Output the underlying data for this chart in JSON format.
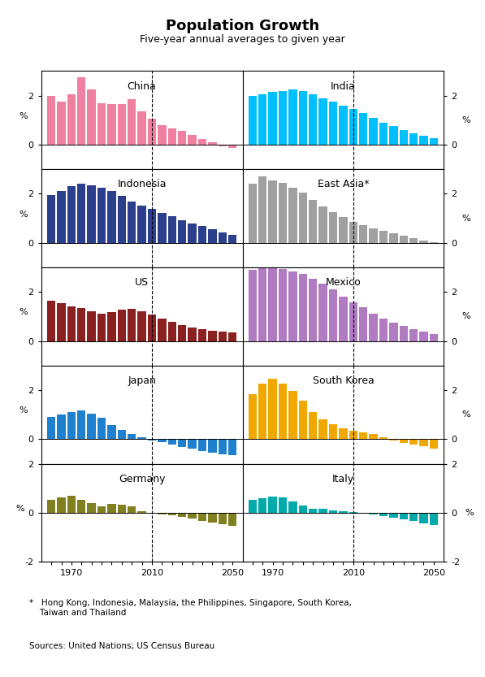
{
  "title": "Population Growth",
  "subtitle": "Five-year annual averages to given year",
  "footnote": "*   Hong Kong, Indonesia, Malaysia, the Philippines, Singapore, South Korea,\n    Taiwan and Thailand",
  "source": "Sources: United Nations; US Census Bureau",
  "colors": {
    "China": "#F080A0",
    "India": "#00BFFF",
    "Indonesia": "#2B3F8C",
    "East Asia*": "#A0A0A0",
    "US": "#8B2020",
    "Mexico": "#B07BC0",
    "Japan": "#2080D0",
    "South Korea": "#F0A800",
    "Germany": "#808020",
    "Italy": "#00AAAA"
  },
  "layout": [
    [
      "China",
      "India"
    ],
    [
      "Indonesia",
      "East Asia*"
    ],
    [
      "US",
      "Mexico"
    ],
    [
      "Japan",
      "South Korea"
    ],
    [
      "Germany",
      "Italy"
    ]
  ],
  "ylims": {
    "China": [
      -1,
      3
    ],
    "India": [
      -1,
      3
    ],
    "Indonesia": [
      -1,
      3
    ],
    "East Asia*": [
      -1,
      3
    ],
    "US": [
      -1,
      3
    ],
    "Mexico": [
      -1,
      3
    ],
    "Japan": [
      -1,
      3
    ],
    "South Korea": [
      -1,
      3
    ],
    "Germany": [
      -2,
      2
    ],
    "Italy": [
      -2,
      2
    ]
  },
  "yticks": {
    "China": [
      0,
      2
    ],
    "India": [
      0,
      2
    ],
    "Indonesia": [
      0,
      2
    ],
    "East Asia*": [
      0,
      2
    ],
    "US": [
      0,
      2
    ],
    "Mexico": [
      0,
      2
    ],
    "Japan": [
      0,
      2
    ],
    "South Korea": [
      0,
      2
    ],
    "Germany": [
      -2,
      0,
      2
    ],
    "Italy": [
      -2,
      0,
      2
    ]
  },
  "panels": {
    "China": {
      "years": [
        1960,
        1965,
        1970,
        1975,
        1980,
        1985,
        1990,
        1995,
        2000,
        2005,
        2010,
        2015,
        2020,
        2025,
        2030,
        2035,
        2040,
        2045,
        2050
      ],
      "values": [
        2.0,
        1.75,
        2.05,
        2.75,
        2.25,
        1.7,
        1.65,
        1.65,
        1.85,
        1.35,
        1.05,
        0.8,
        0.65,
        0.55,
        0.4,
        0.25,
        0.1,
        -0.08,
        -0.12
      ]
    },
    "India": {
      "years": [
        1960,
        1965,
        1970,
        1975,
        1980,
        1985,
        1990,
        1995,
        2000,
        2005,
        2010,
        2015,
        2020,
        2025,
        2030,
        2035,
        2040,
        2045,
        2050
      ],
      "values": [
        2.0,
        2.05,
        2.15,
        2.2,
        2.25,
        2.2,
        2.05,
        1.9,
        1.75,
        1.6,
        1.45,
        1.3,
        1.1,
        0.9,
        0.75,
        0.6,
        0.48,
        0.38,
        0.28
      ]
    },
    "Indonesia": {
      "years": [
        1960,
        1965,
        1970,
        1975,
        1980,
        1985,
        1990,
        1995,
        2000,
        2005,
        2010,
        2015,
        2020,
        2025,
        2030,
        2035,
        2040,
        2045,
        2050
      ],
      "values": [
        1.95,
        2.1,
        2.3,
        2.4,
        2.35,
        2.25,
        2.1,
        1.9,
        1.68,
        1.52,
        1.38,
        1.22,
        1.08,
        0.92,
        0.8,
        0.68,
        0.56,
        0.44,
        0.34
      ]
    },
    "East Asia*": {
      "years": [
        1960,
        1965,
        1970,
        1975,
        1980,
        1985,
        1990,
        1995,
        2000,
        2005,
        2010,
        2015,
        2020,
        2025,
        2030,
        2035,
        2040,
        2045,
        2050
      ],
      "values": [
        2.4,
        2.7,
        2.55,
        2.45,
        2.25,
        2.05,
        1.75,
        1.5,
        1.25,
        1.05,
        0.85,
        0.72,
        0.58,
        0.48,
        0.38,
        0.28,
        0.18,
        0.1,
        0.04
      ]
    },
    "US": {
      "years": [
        1960,
        1965,
        1970,
        1975,
        1980,
        1985,
        1990,
        1995,
        2000,
        2005,
        2010,
        2015,
        2020,
        2025,
        2030,
        2035,
        2040,
        2045,
        2050
      ],
      "values": [
        1.65,
        1.55,
        1.42,
        1.35,
        1.22,
        1.1,
        1.18,
        1.28,
        1.32,
        1.22,
        1.08,
        0.92,
        0.78,
        0.66,
        0.56,
        0.48,
        0.43,
        0.38,
        0.36
      ]
    },
    "Mexico": {
      "years": [
        1960,
        1965,
        1970,
        1975,
        1980,
        1985,
        1990,
        1995,
        2000,
        2005,
        2010,
        2015,
        2020,
        2025,
        2030,
        2035,
        2040,
        2045,
        2050
      ],
      "values": [
        2.9,
        3.2,
        3.2,
        2.95,
        2.85,
        2.72,
        2.55,
        2.35,
        2.1,
        1.82,
        1.58,
        1.38,
        1.12,
        0.92,
        0.76,
        0.62,
        0.5,
        0.38,
        0.28
      ]
    },
    "Japan": {
      "years": [
        1960,
        1965,
        1970,
        1975,
        1980,
        1985,
        1990,
        1995,
        2000,
        2005,
        2010,
        2015,
        2020,
        2025,
        2030,
        2035,
        2040,
        2045,
        2050
      ],
      "values": [
        0.92,
        1.02,
        1.12,
        1.18,
        1.05,
        0.88,
        0.58,
        0.38,
        0.22,
        0.08,
        -0.04,
        -0.12,
        -0.22,
        -0.32,
        -0.4,
        -0.47,
        -0.54,
        -0.6,
        -0.64
      ]
    },
    "South Korea": {
      "years": [
        1960,
        1965,
        1970,
        1975,
        1980,
        1985,
        1990,
        1995,
        2000,
        2005,
        2010,
        2015,
        2020,
        2025,
        2030,
        2035,
        2040,
        2045,
        2050
      ],
      "values": [
        1.85,
        2.28,
        2.48,
        2.28,
        1.98,
        1.58,
        1.12,
        0.82,
        0.62,
        0.46,
        0.36,
        0.28,
        0.2,
        0.08,
        -0.04,
        -0.14,
        -0.22,
        -0.3,
        -0.38
      ]
    },
    "Germany": {
      "years": [
        1960,
        1965,
        1970,
        1975,
        1980,
        1985,
        1990,
        1995,
        2000,
        2005,
        2010,
        2015,
        2020,
        2025,
        2030,
        2035,
        2040,
        2045,
        2050
      ],
      "values": [
        0.52,
        0.62,
        0.68,
        0.52,
        0.4,
        0.28,
        0.36,
        0.33,
        0.26,
        0.08,
        -0.04,
        -0.06,
        -0.1,
        -0.17,
        -0.24,
        -0.32,
        -0.4,
        -0.47,
        -0.54
      ]
    },
    "Italy": {
      "years": [
        1960,
        1965,
        1970,
        1975,
        1980,
        1985,
        1990,
        1995,
        2000,
        2005,
        2010,
        2015,
        2020,
        2025,
        2030,
        2035,
        2040,
        2045,
        2050
      ],
      "values": [
        0.53,
        0.58,
        0.65,
        0.62,
        0.45,
        0.3,
        0.18,
        0.16,
        0.1,
        0.08,
        0.03,
        0.0,
        -0.06,
        -0.14,
        -0.2,
        -0.27,
        -0.34,
        -0.42,
        -0.5
      ]
    }
  }
}
